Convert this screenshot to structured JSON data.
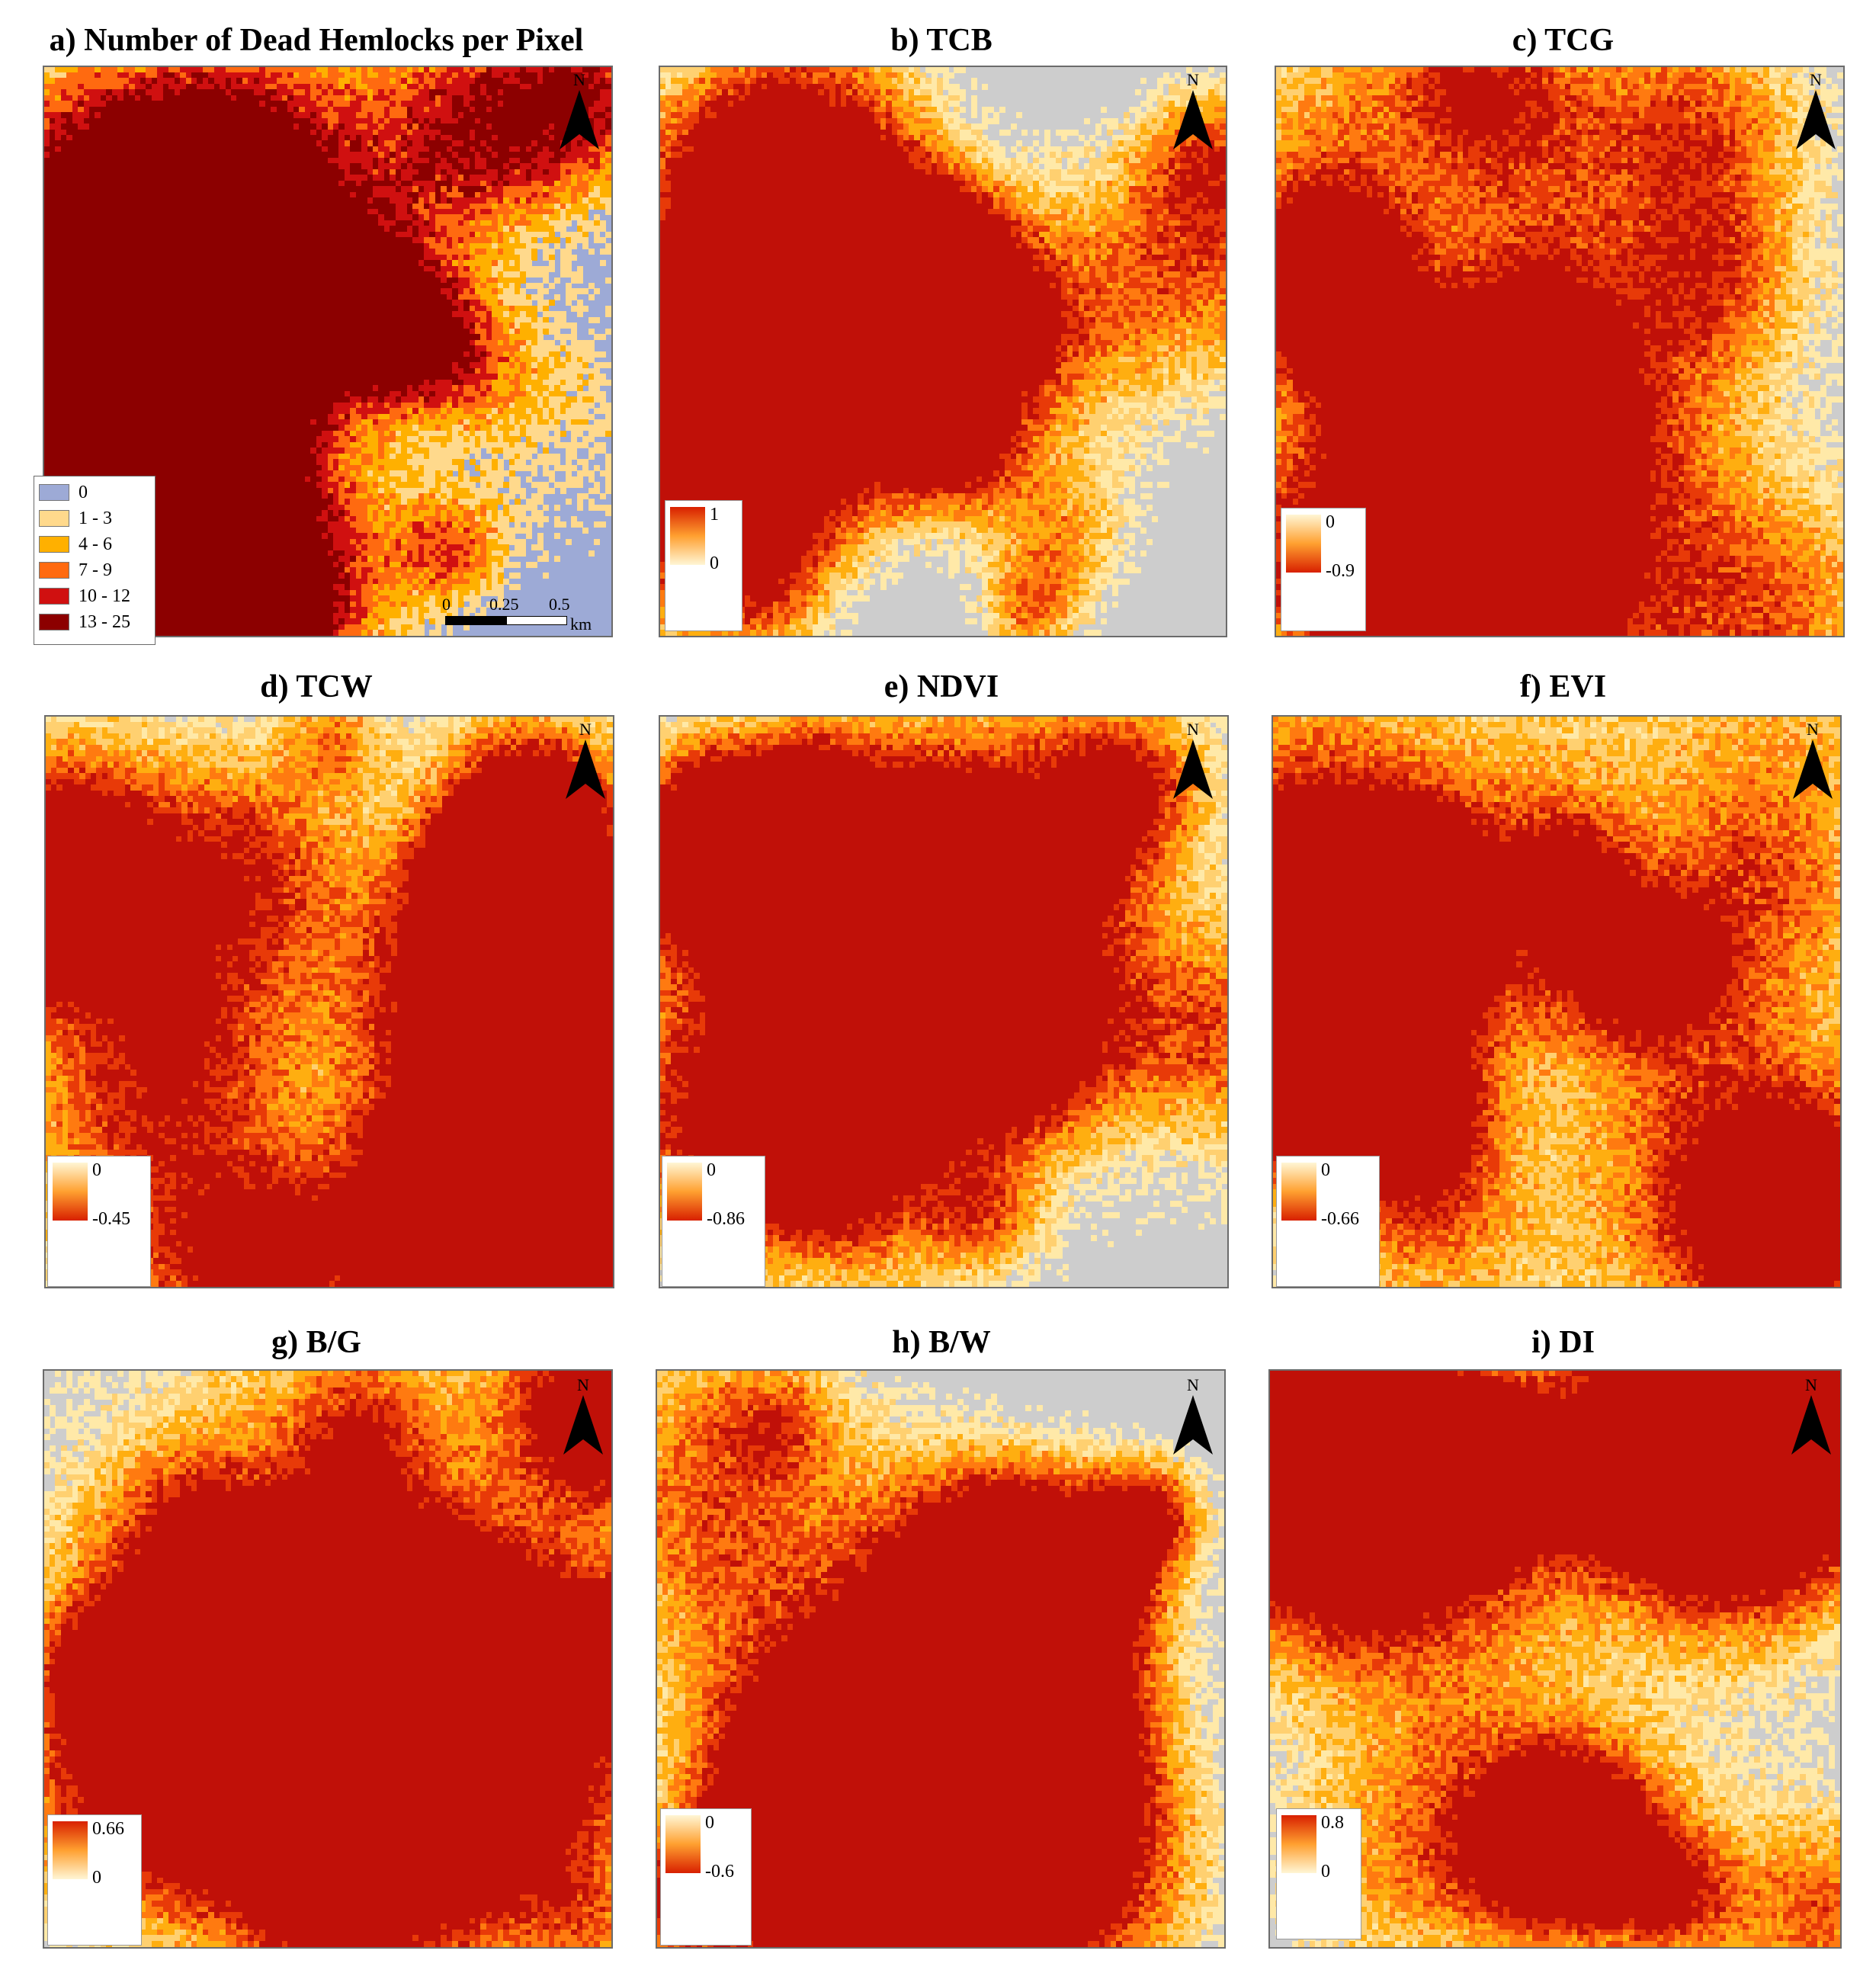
{
  "panels": [
    {
      "id": "a",
      "title": "a) Number of Dead Hemlocks per Pixel",
      "kind": "classes",
      "colors": {
        "background": "#9DAAD6",
        "c1": "#FFD98C",
        "c2": "#FFB000",
        "c3": "#FF6A10",
        "c4": "#D01010",
        "c5": "#8C0000"
      },
      "legend": [
        {
          "label": "0",
          "color": "#9DAAD6"
        },
        {
          "label": "1 - 3",
          "color": "#FFD98C"
        },
        {
          "label": "4 - 6",
          "color": "#FFB000"
        },
        {
          "label": "7 - 9",
          "color": "#FF6A10"
        },
        {
          "label": "10 - 12",
          "color": "#D01010"
        },
        {
          "label": "13 - 25",
          "color": "#8C0000"
        }
      ],
      "scalebar": {
        "ticks": [
          "0",
          "0.25",
          "0.5"
        ],
        "unit": "km"
      },
      "density": 0.35,
      "seed": 11
    },
    {
      "id": "b",
      "title": "b) TCB",
      "kind": "ramp",
      "ramp": "light-to-red-up",
      "legend": {
        "top": "1",
        "bottom": "0"
      },
      "density": 0.22,
      "seed": 23
    },
    {
      "id": "c",
      "title": "c) TCG",
      "kind": "ramp",
      "ramp": "light-to-red-down",
      "legend": {
        "top": "0",
        "bottom": "-0.9"
      },
      "density": 0.78,
      "seed": 37
    },
    {
      "id": "d",
      "title": "d) TCW",
      "kind": "ramp",
      "ramp": "light-to-red-down",
      "legend": {
        "top": "0",
        "bottom": "-0.45"
      },
      "density": 0.82,
      "seed": 41
    },
    {
      "id": "e",
      "title": "e) NDVI",
      "kind": "ramp",
      "ramp": "light-to-red-down",
      "legend": {
        "top": "0",
        "bottom": "-0.86"
      },
      "density": 0.72,
      "seed": 53
    },
    {
      "id": "f",
      "title": "f) EVI",
      "kind": "ramp",
      "ramp": "light-to-red-down",
      "legend": {
        "top": "0",
        "bottom": "-0.66"
      },
      "density": 0.65,
      "seed": 67
    },
    {
      "id": "g",
      "title": "g) B/G",
      "kind": "ramp",
      "ramp": "light-to-red-up",
      "legend": {
        "top": "0.66",
        "bottom": "0"
      },
      "density": 0.88,
      "seed": 71
    },
    {
      "id": "h",
      "title": "h) B/W",
      "kind": "ramp",
      "ramp": "light-to-red-down",
      "legend": {
        "top": "0",
        "bottom": "-0.6"
      },
      "density": 0.3,
      "seed": 83
    },
    {
      "id": "i",
      "title": "i) DI",
      "kind": "ramp",
      "ramp": "light-to-red-up",
      "legend": {
        "top": "0.8",
        "bottom": "0"
      },
      "density": 0.45,
      "seed": 97
    }
  ],
  "north_label": "N",
  "colors": {
    "nodata_gray": "#CDCDCD",
    "ramp_light": "#FFF6D5",
    "ramp_mid": "#FFB000",
    "ramp_dark": "#D82000",
    "frame": "#6B6B6B"
  }
}
